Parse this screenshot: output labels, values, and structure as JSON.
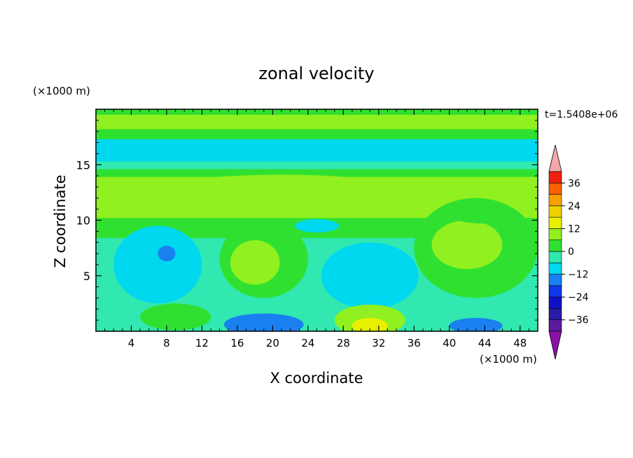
{
  "chart_data": {
    "type": "heatmap",
    "title": "zonal velocity",
    "xlabel": "X coordinate",
    "ylabel": "Z coordinate",
    "x_unit": "(×1000 m)",
    "y_unit": "(×1000 m)",
    "time_label": "t=1.5408e+06",
    "xlim": [
      0,
      50
    ],
    "ylim": [
      0,
      20
    ],
    "x_ticks": [
      4,
      8,
      12,
      16,
      20,
      24,
      28,
      32,
      36,
      40,
      44,
      48
    ],
    "y_ticks": [
      5,
      10,
      15
    ],
    "colorbar": {
      "levels": [
        -42,
        -36,
        -30,
        -24,
        -18,
        -12,
        -6,
        0,
        6,
        12,
        18,
        24,
        30,
        36,
        42
      ],
      "tick_values": [
        36,
        24,
        12,
        0,
        -12,
        -24,
        -36
      ],
      "tick_labels": [
        "36",
        "24",
        "12",
        "0",
        "−12",
        "−24",
        "−36"
      ],
      "colors": [
        "#5a1a9e",
        "#2a1aa8",
        "#1010c8",
        "#1038e8",
        "#1a80f0",
        "#00d8f0",
        "#30e8b0",
        "#30e030",
        "#90f020",
        "#e8f000",
        "#f0d000",
        "#f8a000",
        "#f86000",
        "#f02010"
      ],
      "under_color": "#8a10a8",
      "over_color": "#f4a8a8"
    },
    "bands": [
      {
        "z": [
          19.5,
          20
        ],
        "u": 3
      },
      {
        "z": [
          18.2,
          19.5
        ],
        "u": 6
      },
      {
        "z": [
          17.3,
          18.2
        ],
        "u": 0
      },
      {
        "z": [
          16.4,
          17.3
        ],
        "u": -7
      },
      {
        "z": [
          15.3,
          16.4
        ],
        "u": -10
      },
      {
        "z": [
          14.6,
          15.3
        ],
        "u": -6
      },
      {
        "z": [
          13.9,
          14.6
        ],
        "u": 0
      },
      {
        "z": [
          10.2,
          13.9
        ],
        "u": 6
      },
      {
        "z": [
          8.4,
          10.2
        ],
        "u": 0
      },
      {
        "z": [
          0,
          8.4
        ],
        "u": -4
      }
    ],
    "blobs": [
      {
        "x": 21,
        "z": 12.5,
        "rx": 15,
        "rz": 1.6,
        "u": 7
      },
      {
        "x": 21,
        "z": 12.6,
        "rx": 9,
        "rz": 0.9,
        "u": 10
      },
      {
        "x": 43,
        "z": 7.5,
        "rx": 7,
        "rz": 4.5,
        "u": 5
      },
      {
        "x": 42,
        "z": 7.8,
        "rx": 4,
        "rz": 2.2,
        "u": 9
      },
      {
        "x": 19,
        "z": 6.5,
        "rx": 5,
        "rz": 3.5,
        "u": 4
      },
      {
        "x": 18,
        "z": 6.2,
        "rx": 2.8,
        "rz": 2.0,
        "u": 8
      },
      {
        "x": 31,
        "z": 5,
        "rx": 5.5,
        "rz": 3,
        "u": -9
      },
      {
        "x": 31,
        "z": 5,
        "rx": 3,
        "rz": 1.8,
        "u": -12
      },
      {
        "x": 7,
        "z": 6,
        "rx": 5,
        "rz": 3.5,
        "u": -9
      },
      {
        "x": 8,
        "z": 7,
        "rx": 1,
        "rz": 0.7,
        "u": -14
      },
      {
        "x": 25,
        "z": 9.5,
        "rx": 2.5,
        "rz": 0.6,
        "u": -8
      },
      {
        "x": 31,
        "z": 1,
        "rx": 4,
        "rz": 1.4,
        "u": 7
      },
      {
        "x": 31,
        "z": 0.5,
        "rx": 2,
        "rz": 0.7,
        "u": 12
      },
      {
        "x": 19,
        "z": 0.6,
        "rx": 4.5,
        "rz": 1,
        "u": -14
      },
      {
        "x": 9,
        "z": 1.3,
        "rx": 4,
        "rz": 1.2,
        "u": 4
      },
      {
        "x": 43,
        "z": 0.5,
        "rx": 3,
        "rz": 0.7,
        "u": -14
      },
      {
        "x": 44,
        "z": 10.5,
        "rx": 4,
        "rz": 0.8,
        "u": 3
      }
    ]
  }
}
